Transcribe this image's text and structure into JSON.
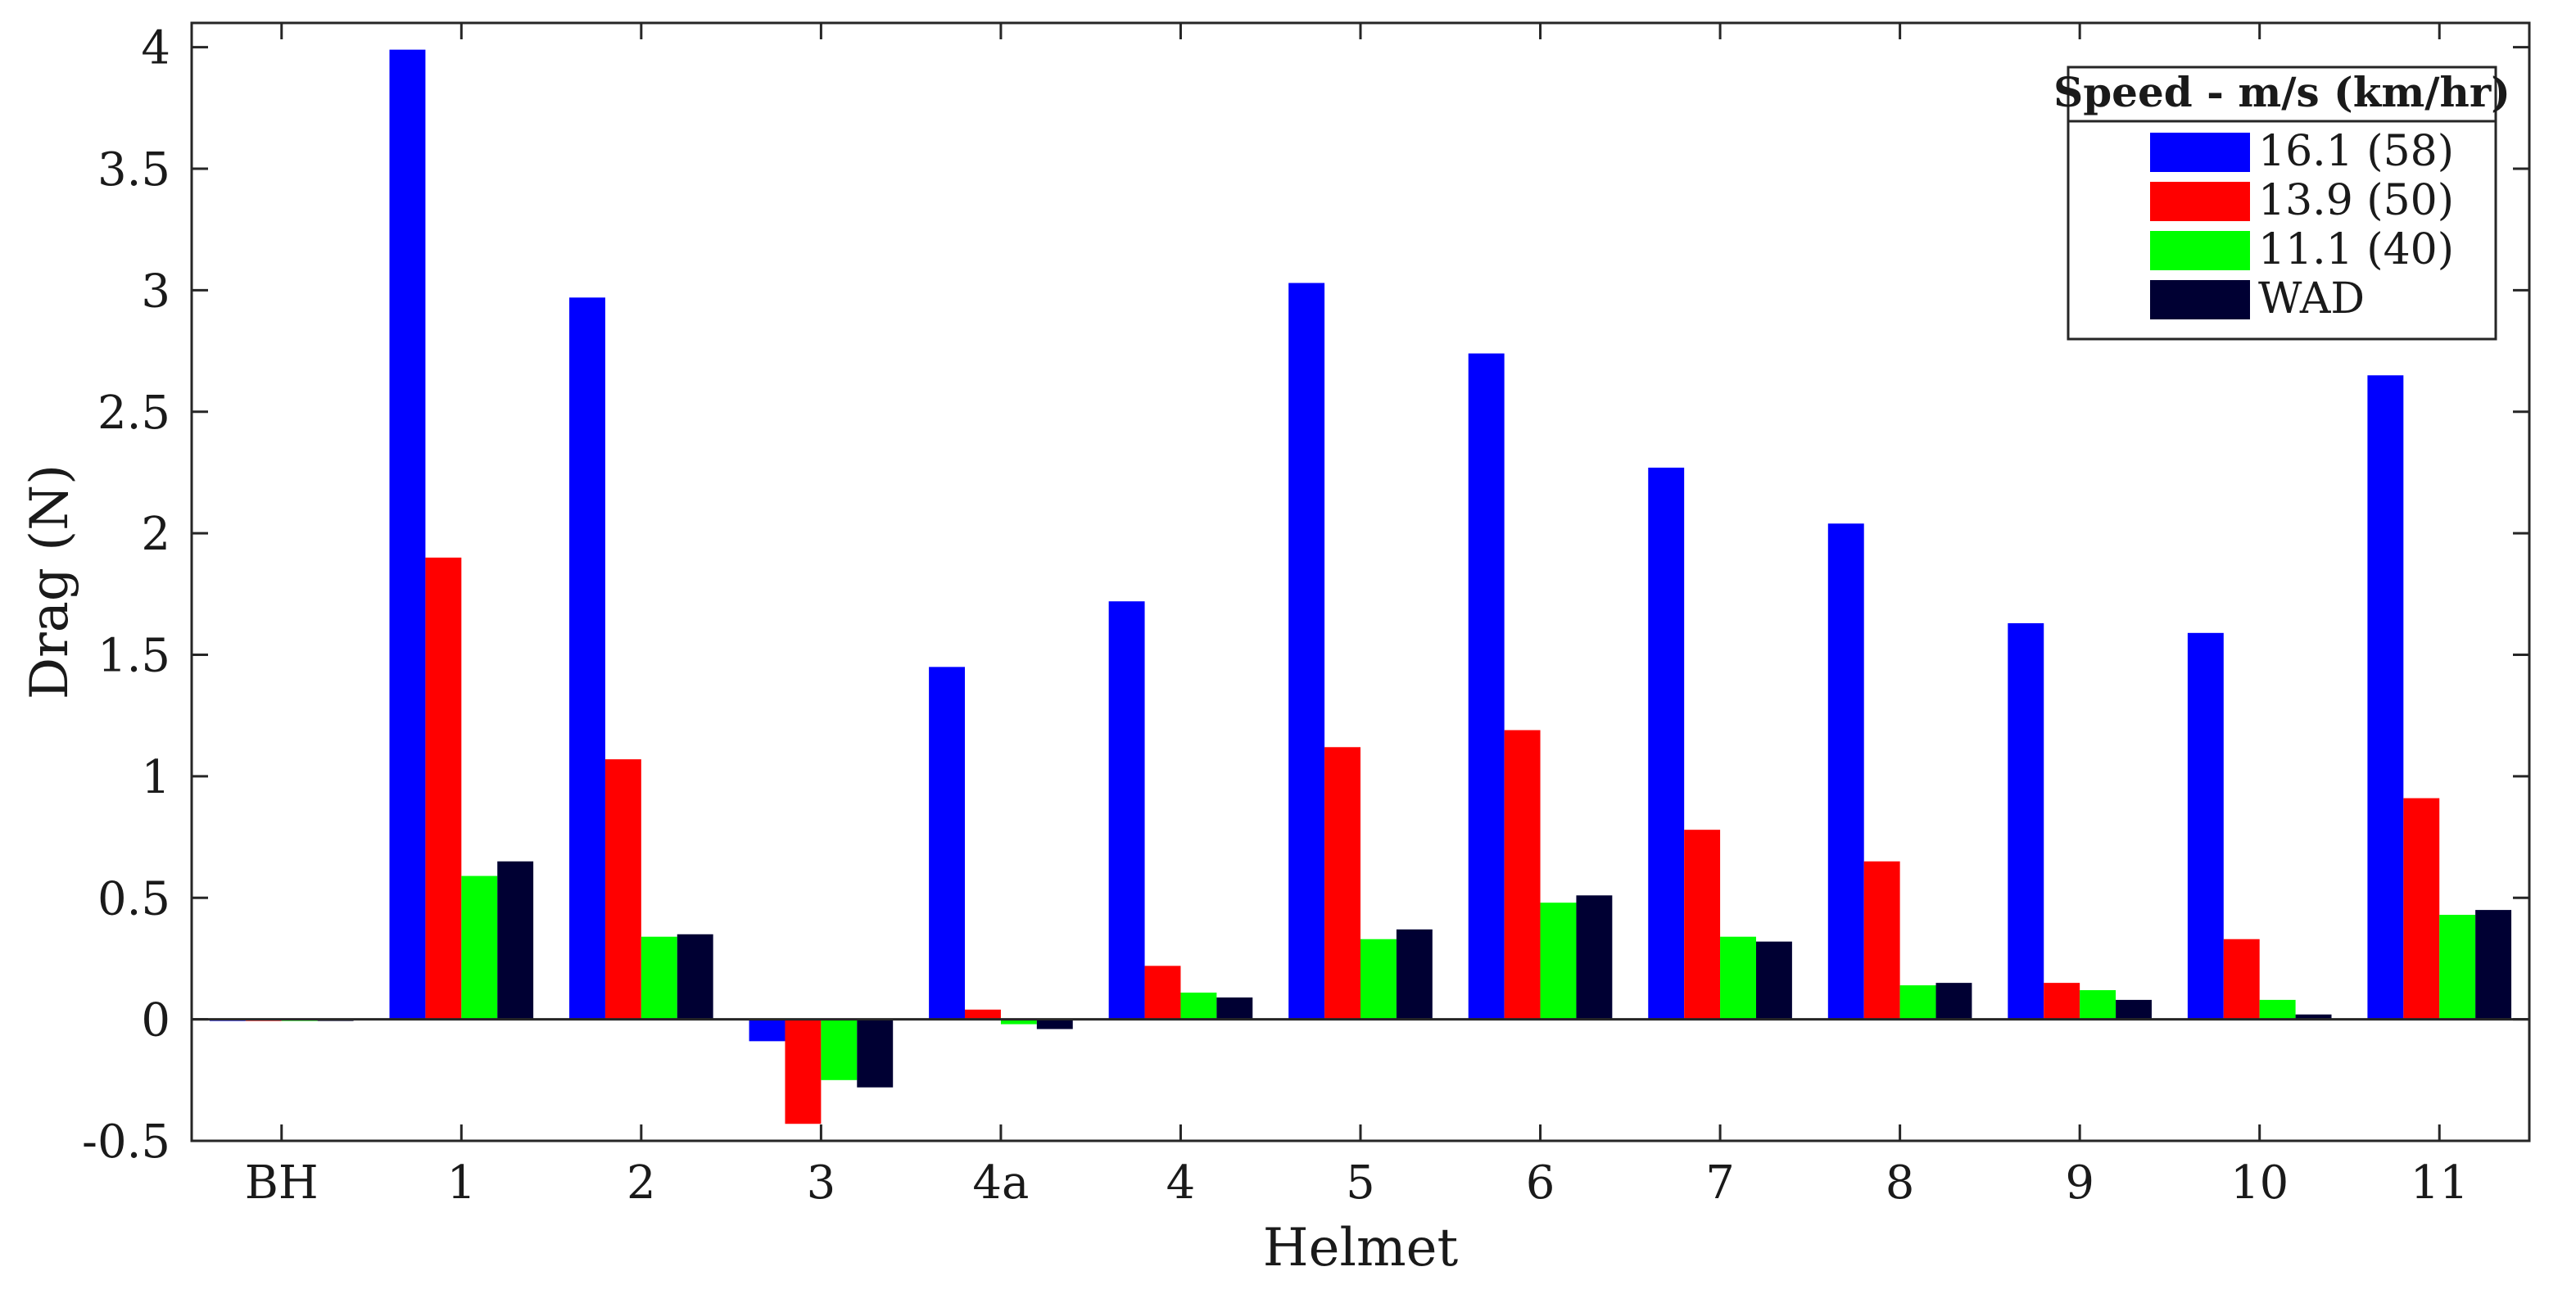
{
  "chart_data": {
    "type": "bar",
    "title": "",
    "xlabel": "Helmet",
    "ylabel": "Drag (N)",
    "ylim": [
      -0.5,
      4.1
    ],
    "yticks": [
      -0.5,
      0,
      0.5,
      1,
      1.5,
      2,
      2.5,
      3,
      3.5,
      4
    ],
    "ytick_labels": [
      "-0.5",
      "0",
      "0.5",
      "1",
      "1.5",
      "2",
      "2.5",
      "3",
      "3.5",
      "4"
    ],
    "categories": [
      "BH",
      "1",
      "2",
      "3",
      "4a",
      "4",
      "5",
      "6",
      "7",
      "8",
      "9",
      "10",
      "11"
    ],
    "grid": false,
    "legend": {
      "title": "Speed - m/s (km/hr)",
      "placement": "top-right"
    },
    "series": [
      {
        "name": "16.1 (58)",
        "color": "#0000ff",
        "values": [
          0,
          3.99,
          2.97,
          -0.09,
          1.45,
          1.72,
          3.03,
          2.74,
          2.27,
          2.04,
          1.63,
          1.59,
          2.65
        ]
      },
      {
        "name": "13.9 (50)",
        "color": "#ff0000",
        "values": [
          0,
          1.9,
          1.07,
          -0.43,
          0.04,
          0.22,
          1.12,
          1.19,
          0.78,
          0.65,
          0.15,
          0.33,
          0.91
        ]
      },
      {
        "name": "11.1 (40)",
        "color": "#00ff00",
        "values": [
          0,
          0.59,
          0.34,
          -0.25,
          -0.02,
          0.11,
          0.33,
          0.48,
          0.34,
          0.14,
          0.12,
          0.08,
          0.43
        ]
      },
      {
        "name": "WAD",
        "color": "#000033",
        "values": [
          0,
          0.65,
          0.35,
          -0.28,
          -0.04,
          0.09,
          0.37,
          0.51,
          0.32,
          0.15,
          0.08,
          0.02,
          0.45
        ]
      }
    ]
  }
}
